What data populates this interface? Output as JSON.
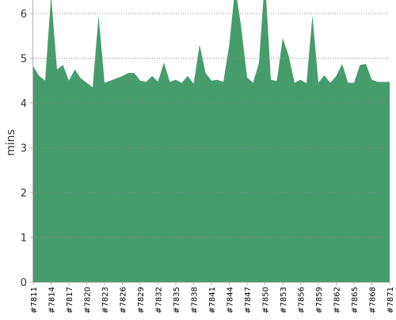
{
  "chart_data": {
    "type": "area",
    "title": "",
    "xlabel": "",
    "ylabel": "mins",
    "ylim": [
      0,
      6.3
    ],
    "yticks": [
      0,
      1,
      2,
      3,
      4,
      5,
      6
    ],
    "grid": true,
    "legend": "none",
    "fill_color": "#479c6c",
    "grid_color": "#8c8c8c",
    "axis_color": "#b4b4b4",
    "categories": [
      "#7811",
      "#7812",
      "#7813",
      "#7814",
      "#7815",
      "#7816",
      "#7817",
      "#7818",
      "#7819",
      "#7820",
      "#7821",
      "#7822",
      "#7823",
      "#7824",
      "#7825",
      "#7826",
      "#7827",
      "#7828",
      "#7829",
      "#7830",
      "#7831",
      "#7832",
      "#7833",
      "#7834",
      "#7835",
      "#7836",
      "#7837",
      "#7838",
      "#7839",
      "#7840",
      "#7841",
      "#7842",
      "#7843",
      "#7844",
      "#7845",
      "#7846",
      "#7847",
      "#7848",
      "#7849",
      "#7850",
      "#7851",
      "#7852",
      "#7853",
      "#7854",
      "#7855",
      "#7856",
      "#7857",
      "#7858",
      "#7859",
      "#7860",
      "#7861",
      "#7862",
      "#7863",
      "#7864",
      "#7865",
      "#7866",
      "#7867",
      "#7868",
      "#7869",
      "#7870",
      "#7871"
    ],
    "tick_labels": [
      "#7811",
      "#7814",
      "#7817",
      "#7820",
      "#7823",
      "#7826",
      "#7829",
      "#7832",
      "#7835",
      "#7838",
      "#7841",
      "#7844",
      "#7847",
      "#7850",
      "#7853",
      "#7856",
      "#7859",
      "#7862",
      "#7865",
      "#7868",
      "#7871"
    ],
    "series": [
      {
        "values": [
          4.82,
          4.6,
          4.5,
          6.4,
          4.75,
          4.85,
          4.5,
          4.75,
          4.55,
          4.45,
          4.35,
          5.95,
          4.45,
          4.5,
          4.55,
          4.6,
          4.67,
          4.67,
          4.5,
          4.47,
          4.6,
          4.48,
          4.9,
          4.47,
          4.52,
          4.45,
          4.6,
          4.43,
          5.3,
          4.67,
          4.5,
          4.52,
          4.47,
          5.3,
          6.6,
          5.7,
          4.57,
          4.45,
          4.9,
          6.8,
          4.52,
          4.49,
          5.45,
          5.05,
          4.45,
          4.52,
          4.44,
          5.95,
          4.45,
          4.62,
          4.45,
          4.6,
          4.87,
          4.45,
          4.45,
          4.85,
          4.87,
          4.52,
          4.47,
          4.47,
          4.47
        ]
      }
    ]
  }
}
